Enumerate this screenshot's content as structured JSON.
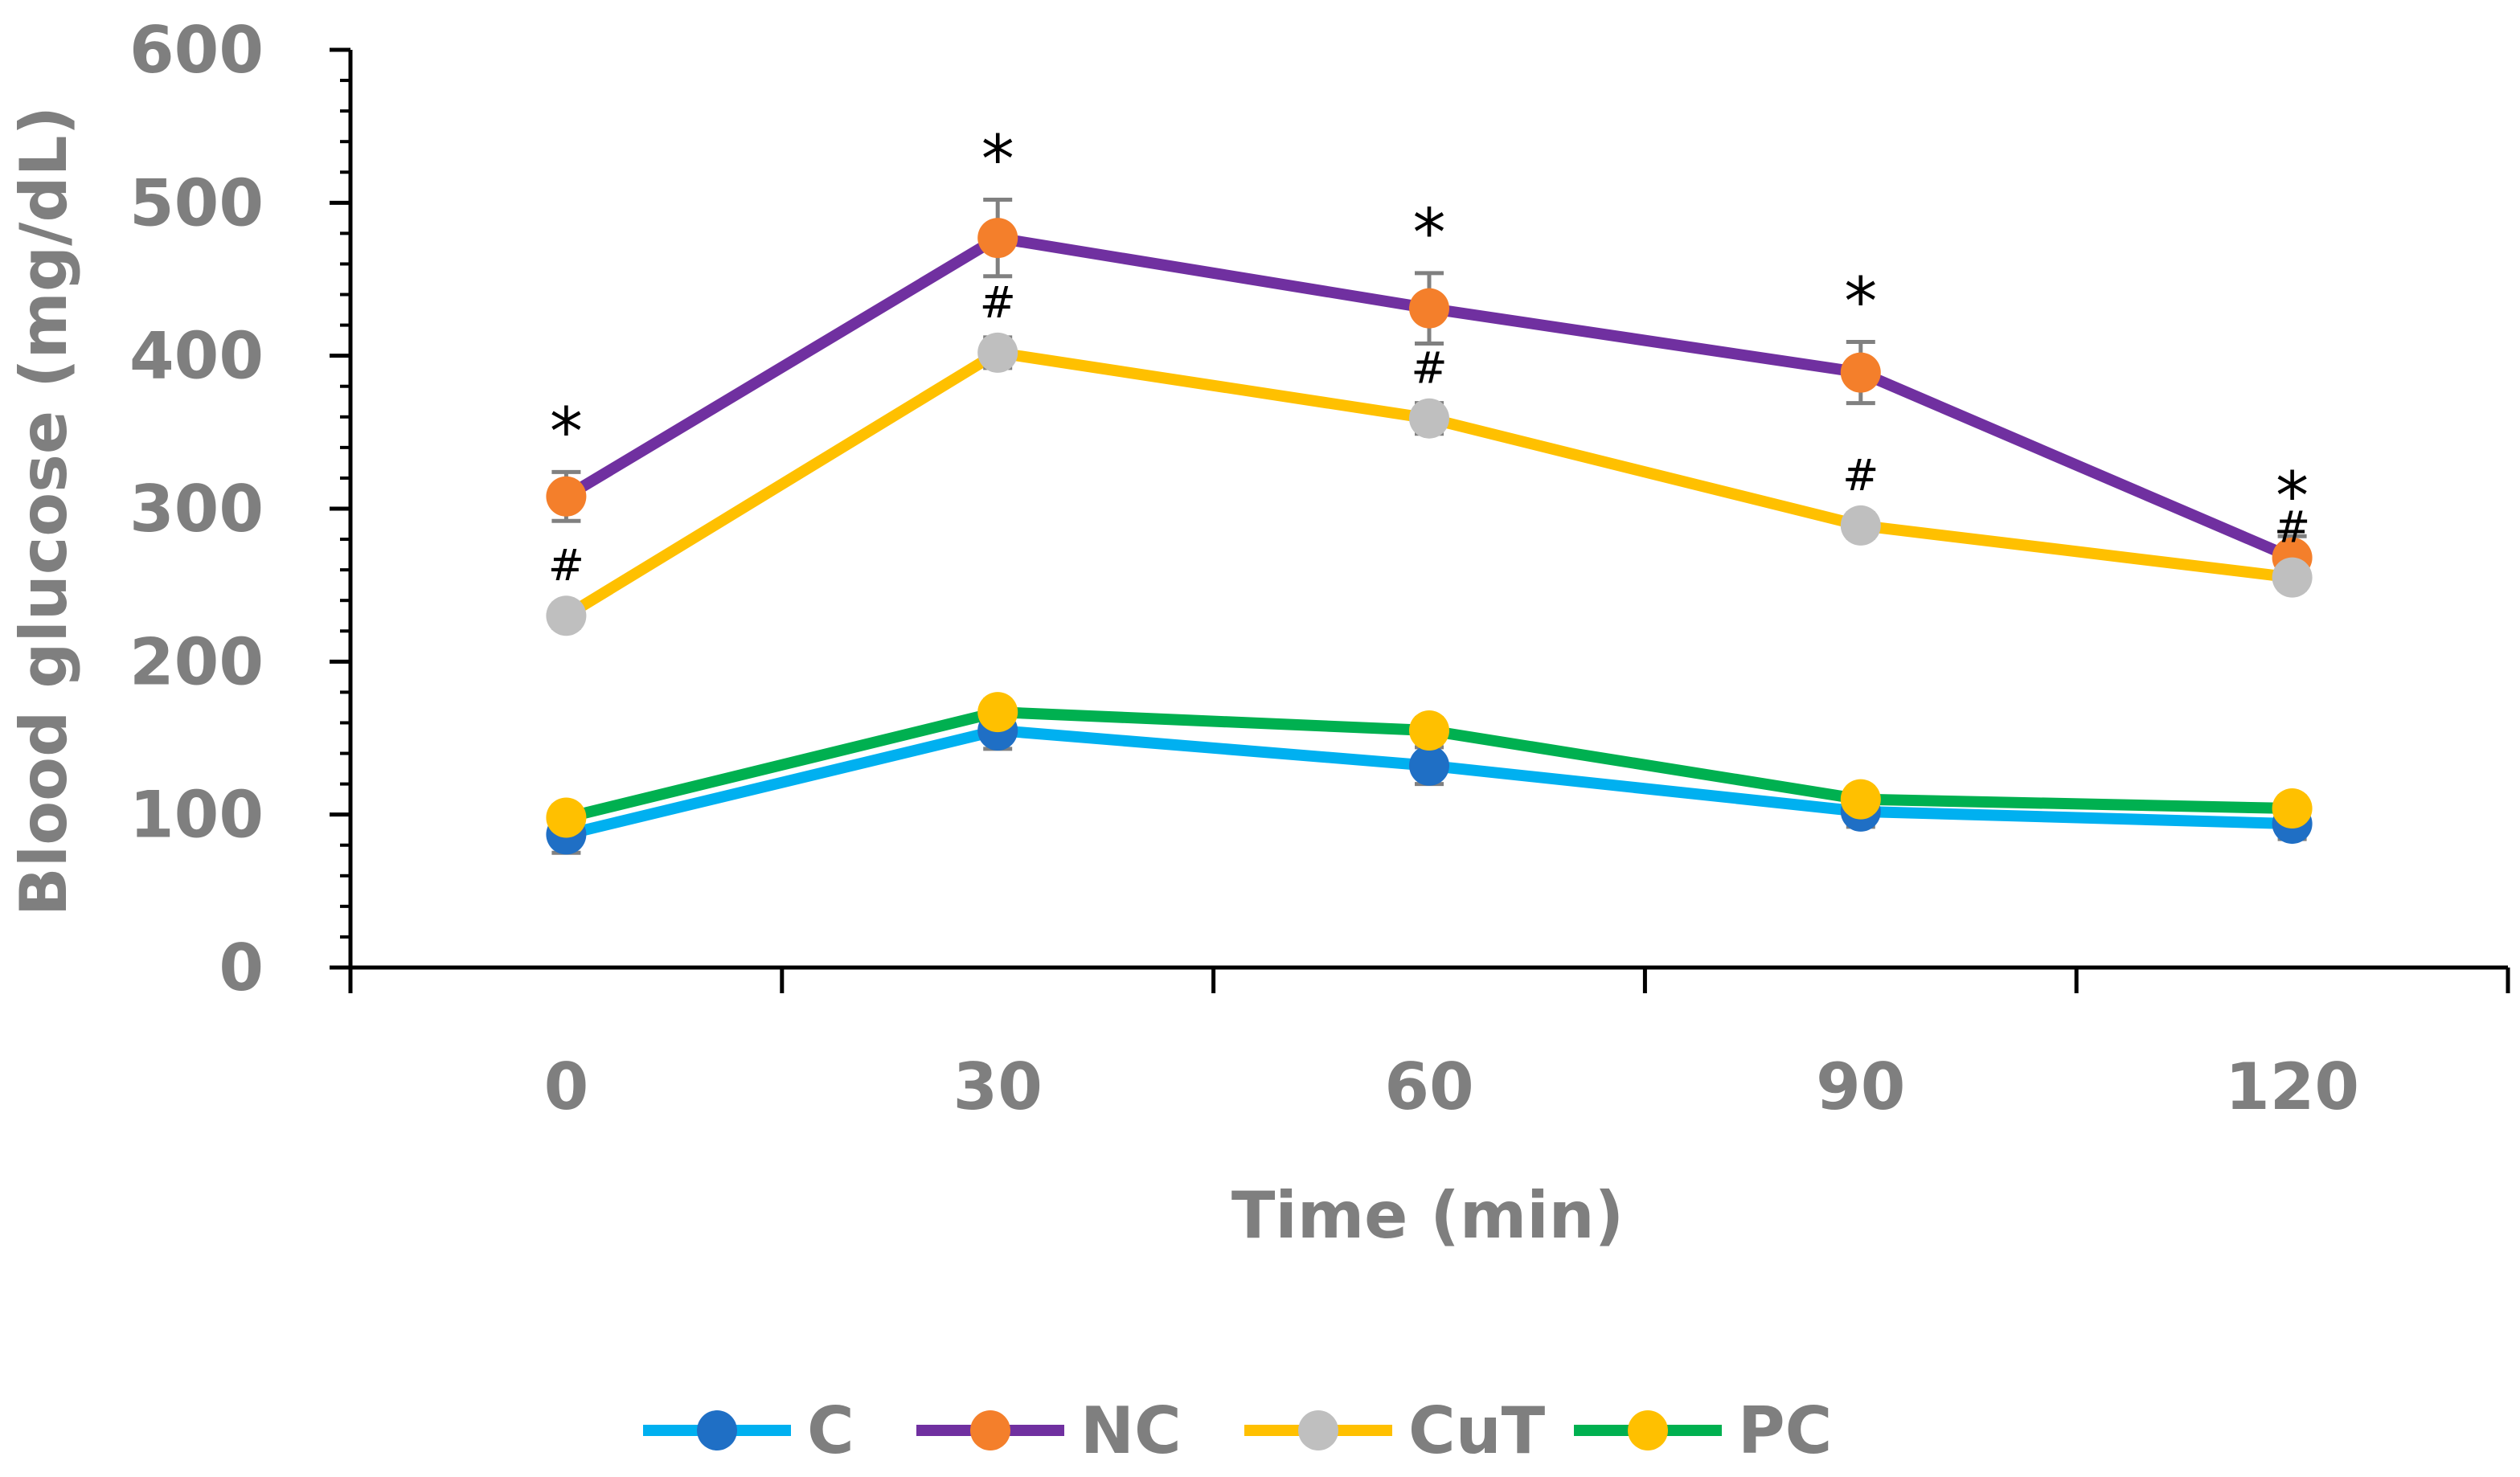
{
  "chart_data": {
    "type": "line",
    "title": "",
    "xlabel": "Time (min)",
    "ylabel": "Blood glucose (mg/dL)",
    "x": [
      0,
      30,
      60,
      90,
      120
    ],
    "x_tick_labels": [
      "0",
      "30",
      "60",
      "90",
      "120"
    ],
    "xlim": [
      -15,
      135
    ],
    "ylim": [
      0,
      600
    ],
    "y_ticks": [
      0,
      100,
      200,
      300,
      400,
      500,
      600
    ],
    "y_tick_labels": [
      "0",
      "100",
      "200",
      "300",
      "400",
      "500",
      "600"
    ],
    "grid": false,
    "legend_position": "bottom",
    "series": [
      {
        "name": "C",
        "values": [
          87,
          155,
          132,
          102,
          94
        ],
        "errors": [
          12,
          12,
          12,
          10,
          10
        ],
        "line_color": "#00b0f0",
        "marker_color": "#1f6fc5",
        "annotations": [
          "",
          "",
          "",
          "",
          ""
        ]
      },
      {
        "name": "NC",
        "values": [
          308,
          477,
          431,
          389,
          268
        ],
        "errors": [
          16,
          25,
          23,
          20,
          14
        ],
        "line_color": "#7030a0",
        "marker_color": "#f47f2b",
        "annotations": [
          "*",
          "*",
          "*",
          "*",
          "*"
        ]
      },
      {
        "name": "CuT",
        "values": [
          230,
          402,
          359,
          289,
          255
        ],
        "errors": [
          8,
          10,
          10,
          8,
          8
        ],
        "line_color": "#ffc000",
        "marker_color": "#bfbfbf",
        "annotations": [
          "#",
          "#",
          "#",
          "#",
          "#"
        ]
      },
      {
        "name": "PC",
        "values": [
          98,
          167,
          155,
          110,
          104
        ],
        "errors": [
          8,
          8,
          8,
          8,
          8
        ],
        "line_color": "#00b050",
        "marker_color": "#ffc000",
        "annotations": [
          "",
          "",
          "",
          "",
          ""
        ]
      }
    ]
  }
}
